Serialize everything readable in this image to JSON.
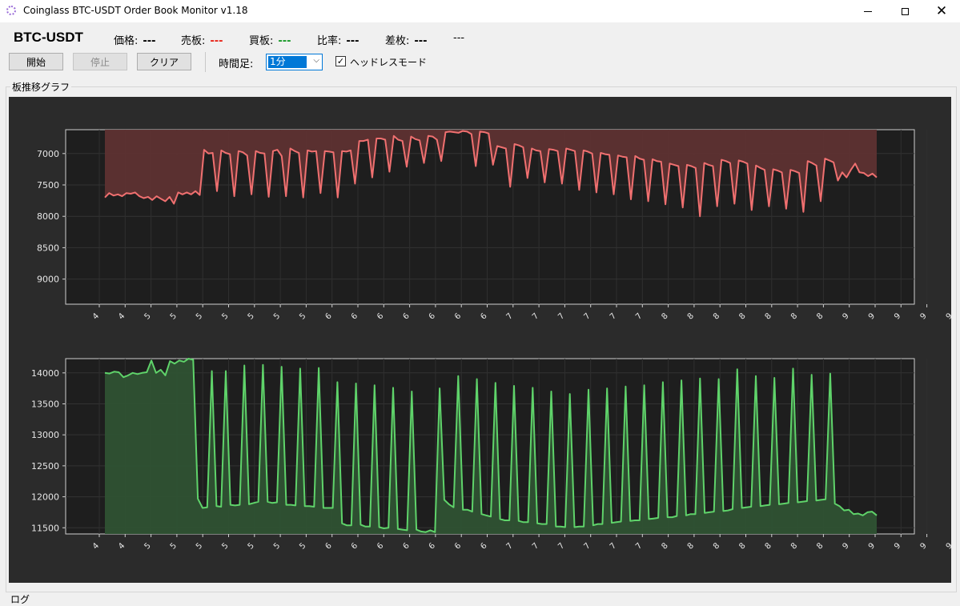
{
  "window": {
    "title": "Coinglass BTC-USDT Order Book Monitor v1.18"
  },
  "header": {
    "pair": "BTC-USDT",
    "price_label": "価格:",
    "price_value": "---",
    "sell_label": "売板:",
    "sell_value": "---",
    "buy_label": "買板:",
    "buy_value": "---",
    "ratio_label": "比率:",
    "ratio_value": "---",
    "diff_label": "差枚:",
    "diff_value": "---",
    "extra_value": "---"
  },
  "toolbar": {
    "start_label": "開始",
    "stop_label": "停止",
    "clear_label": "クリア",
    "timeframe_label": "時間足:",
    "timeframe_value": "1分",
    "headless_label": "ヘッドレスモード",
    "headless_checked": true
  },
  "panel": {
    "graph_group_label": "板推移グラフ",
    "log_group_label": "ログ"
  },
  "colors": {
    "sell_line": "#f07070",
    "sell_fill": "#5e3232",
    "buy_line": "#5fd36a",
    "buy_fill": "#2f5233",
    "plot_bg": "#1e1e1e",
    "canvas_bg": "#2b2b2b"
  },
  "chart_data": [
    {
      "type": "area",
      "series": [
        {
          "name": "",
          "values": [
            7700,
            7630,
            7670,
            7650,
            7680,
            7630,
            7640,
            7620,
            7680,
            7710,
            7690,
            7740,
            7680,
            7720,
            7760,
            7690,
            7800,
            7620,
            7650,
            7620,
            7650,
            7600,
            7660,
            6940,
            7000,
            6990,
            7600,
            6950,
            6990,
            7010,
            7680,
            6960,
            6980,
            7030,
            7650,
            6960,
            6990,
            7000,
            7690,
            6960,
            6940,
            7040,
            7680,
            6920,
            6960,
            6990,
            7700,
            6950,
            6970,
            6960,
            7630,
            6960,
            6970,
            6980,
            7700,
            6960,
            6970,
            6950,
            7480,
            6800,
            6800,
            6780,
            7380,
            6760,
            6760,
            6780,
            7290,
            6720,
            6780,
            6800,
            7210,
            6730,
            6770,
            6790,
            7150,
            6720,
            6730,
            6780,
            7120,
            6660,
            6650,
            6660,
            6670,
            6640,
            6650,
            6690,
            7200,
            6650,
            6660,
            6680,
            7180,
            6880,
            6900,
            6920,
            7530,
            6850,
            6870,
            6900,
            7390,
            6920,
            6950,
            6960,
            7460,
            6930,
            6940,
            6960,
            7480,
            6920,
            6940,
            6960,
            7580,
            6950,
            6970,
            7000,
            7620,
            6990,
            7010,
            7020,
            7650,
            7030,
            7050,
            7060,
            7730,
            7040,
            7080,
            7100,
            7760,
            7090,
            7120,
            7130,
            7810,
            7160,
            7180,
            7200,
            7860,
            7180,
            7200,
            7230,
            8000,
            7150,
            7180,
            7200,
            7840,
            7100,
            7120,
            7150,
            7800,
            7110,
            7130,
            7160,
            7900,
            7190,
            7230,
            7260,
            7840,
            7250,
            7270,
            7300,
            7880,
            7260,
            7280,
            7310,
            7930,
            7120,
            7150,
            7190,
            7760,
            7080,
            7110,
            7140,
            7430,
            7300,
            7380,
            7260,
            7160,
            7300,
            7310,
            7360,
            7320,
            7380
          ]
        }
      ],
      "y_ticks": [
        "7000",
        "7500",
        "8000",
        "8500",
        "9000"
      ],
      "y_range": [
        9400,
        6620
      ],
      "x_ticks": [
        "4",
        "4",
        "5",
        "5",
        "5",
        "5",
        "5",
        "5",
        "5",
        "6",
        "6",
        "6",
        "6",
        "6",
        "6",
        "6",
        "7",
        "7",
        "7",
        "7",
        "7",
        "7",
        "8",
        "8",
        "8",
        "8",
        "8",
        "8",
        "8",
        "9",
        "9",
        "9",
        "9",
        "9"
      ]
    },
    {
      "type": "area",
      "series": [
        {
          "name": "",
          "values": [
            14000,
            13990,
            14020,
            14010,
            13930,
            13960,
            14000,
            13980,
            14000,
            14010,
            14200,
            14000,
            14050,
            13960,
            14190,
            14150,
            14200,
            14180,
            14230,
            14210,
            11970,
            11820,
            11830,
            14030,
            11850,
            11840,
            14030,
            11870,
            11860,
            11870,
            14120,
            11880,
            11900,
            11920,
            14130,
            11920,
            11900,
            11910,
            14100,
            11870,
            11870,
            11860,
            14070,
            11850,
            11850,
            11840,
            14080,
            11820,
            11820,
            11820,
            13850,
            11570,
            11540,
            11540,
            13830,
            11550,
            11520,
            11520,
            13800,
            11510,
            11490,
            11500,
            13760,
            11480,
            11470,
            11460,
            13700,
            11470,
            11440,
            11430,
            11460,
            11430,
            13750,
            11950,
            11880,
            11830,
            13950,
            11790,
            11790,
            11760,
            13900,
            11720,
            11700,
            11680,
            13840,
            11640,
            11620,
            11620,
            13790,
            11610,
            11590,
            11590,
            13760,
            11570,
            11560,
            11560,
            13700,
            11520,
            11520,
            11510,
            13660,
            11510,
            11520,
            11520,
            13730,
            11540,
            11560,
            11560,
            13750,
            11580,
            11590,
            11600,
            13780,
            11610,
            11620,
            11620,
            13800,
            11640,
            11650,
            11660,
            13850,
            11670,
            11670,
            11690,
            13880,
            11700,
            11720,
            11720,
            13910,
            11740,
            11750,
            11760,
            13900,
            11770,
            11780,
            11800,
            14060,
            11820,
            11830,
            11840,
            13950,
            11850,
            11860,
            11870,
            13920,
            11880,
            11890,
            11900,
            14070,
            11910,
            11920,
            11930,
            13970,
            11940,
            11950,
            11960,
            13990,
            11890,
            11850,
            11780,
            11790,
            11720,
            11730,
            11700,
            11750,
            11760,
            11700
          ]
        }
      ],
      "y_ticks": [
        "11500",
        "12000",
        "12500",
        "13000",
        "13500",
        "14000"
      ],
      "y_range": [
        11400,
        14230
      ],
      "x_ticks": [
        "4",
        "4",
        "5",
        "5",
        "5",
        "5",
        "5",
        "5",
        "5",
        "6",
        "6",
        "6",
        "6",
        "6",
        "6",
        "6",
        "7",
        "7",
        "7",
        "7",
        "7",
        "7",
        "8",
        "8",
        "8",
        "8",
        "8",
        "8",
        "8",
        "9",
        "9",
        "9",
        "9",
        "9"
      ]
    }
  ]
}
